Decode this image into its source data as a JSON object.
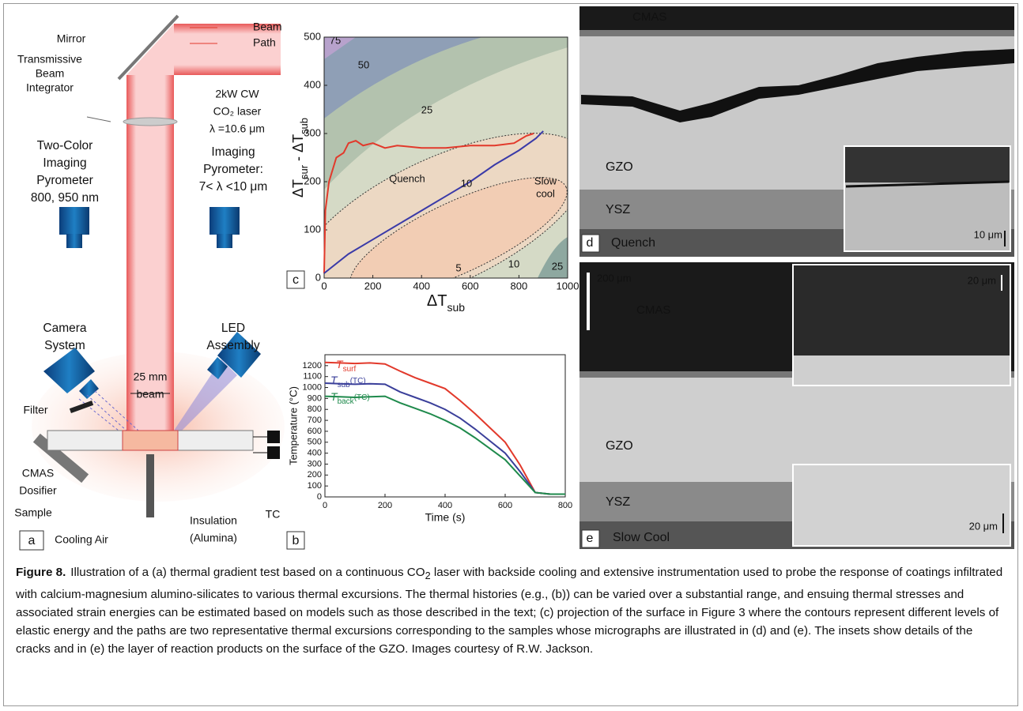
{
  "diagram": {
    "labels": [
      {
        "lines": [
          "Mirror"
        ]
      },
      {
        "lines": [
          "Beam",
          "Path"
        ]
      },
      {
        "lines": [
          "Transmissive",
          "Beam",
          "Integrator"
        ]
      },
      {
        "lines": [
          "2kW CW",
          "CO₂ laser",
          "λ =10.6 μm"
        ]
      },
      {
        "lines": [
          "Two-Color",
          "Imaging",
          "Pyrometer",
          "800, 950 nm"
        ]
      },
      {
        "lines": [
          "Imaging",
          "Pyrometer:",
          "7< λ <10 μm"
        ]
      },
      {
        "lines": [
          "Camera",
          "System"
        ]
      },
      {
        "lines": [
          "LED",
          "Assembly"
        ]
      },
      {
        "lines": [
          "25 mm",
          "beam"
        ]
      },
      {
        "lines": [
          "Filter"
        ]
      },
      {
        "lines": [
          "CMAS",
          "Dosifier"
        ]
      },
      {
        "lines": [
          "Sample"
        ]
      },
      {
        "lines": [
          "Cooling Air"
        ]
      },
      {
        "lines": [
          "Insulation",
          "(Alumina)"
        ]
      },
      {
        "lines": [
          "TC"
        ]
      }
    ],
    "panel_label": "a"
  },
  "chart_data": [
    {
      "type": "line",
      "panel_label": "b",
      "xlabel": "Time (s)",
      "ylabel": "Temperature (°C)",
      "x": [
        0,
        50,
        100,
        150,
        200,
        250,
        300,
        350,
        400,
        450,
        500,
        550,
        600,
        650,
        700,
        750,
        800
      ],
      "xlim": [
        0,
        800
      ],
      "xticks": [
        0,
        200,
        400,
        600,
        800
      ],
      "ylim": [
        0,
        1300
      ],
      "yticks": [
        0,
        100,
        200,
        300,
        400,
        500,
        600,
        700,
        800,
        900,
        1000,
        1100,
        1200
      ],
      "series": [
        {
          "label_main": "T",
          "label_sub": "surf",
          "color": "#e2392b",
          "values": [
            1230,
            1225,
            1220,
            1225,
            1215,
            1150,
            1090,
            1040,
            990,
            880,
            760,
            630,
            500,
            290,
            40,
            25,
            25
          ]
        },
        {
          "label_main": "T",
          "label_sub": "sub",
          "label_note": "(TC)",
          "color": "#3a3f9a",
          "values": [
            1040,
            1035,
            1030,
            1035,
            1030,
            960,
            910,
            860,
            800,
            720,
            620,
            510,
            400,
            230,
            40,
            25,
            25
          ]
        },
        {
          "label_main": "T",
          "label_sub": "back",
          "label_note": "(TC)",
          "color": "#1f8a4c",
          "values": [
            920,
            915,
            910,
            915,
            920,
            860,
            810,
            760,
            700,
            630,
            540,
            440,
            340,
            190,
            40,
            25,
            25
          ]
        }
      ]
    },
    {
      "type": "line",
      "panel_label": "c",
      "xlabel": {
        "main": "ΔT",
        "sub": "sub"
      },
      "ylabel": {
        "main": "ΔT",
        "sub": "sur",
        "mid": " - ΔT",
        "sub2": "sub"
      },
      "xlim": [
        0,
        1000
      ],
      "xticks": [
        0,
        200,
        400,
        600,
        800,
        1000
      ],
      "ylim": [
        0,
        500
      ],
      "yticks": [
        0,
        100,
        200,
        300,
        400,
        500
      ],
      "contour_labels": [
        "75",
        "50",
        "25",
        "10",
        "5",
        "10",
        "25"
      ],
      "series": [
        {
          "label_lines": [
            "Quench"
          ],
          "color": "#e2392b",
          "x": [
            0,
            5,
            20,
            50,
            80,
            100,
            130,
            160,
            200,
            250,
            300,
            400,
            500,
            600,
            700,
            780,
            830,
            860
          ],
          "values": [
            10,
            140,
            200,
            250,
            260,
            280,
            285,
            275,
            280,
            270,
            275,
            270,
            270,
            275,
            275,
            280,
            295,
            300
          ]
        },
        {
          "label_lines": [
            "Slow",
            "cool"
          ],
          "color": "#3a3aa8",
          "x": [
            0,
            100,
            200,
            300,
            400,
            500,
            600,
            700,
            800,
            870,
            900
          ],
          "values": [
            10,
            50,
            80,
            110,
            140,
            170,
            200,
            235,
            265,
            290,
            305
          ]
        }
      ]
    }
  ],
  "micrographs": {
    "d": {
      "labels": [
        "CMAS",
        "GZO",
        "YSZ",
        "Quench"
      ],
      "scale": "10 μm",
      "panel_label": "d"
    },
    "e": {
      "labels": [
        "CMAS",
        "GZO",
        "YSZ",
        "Slow Cool"
      ],
      "scale_main": "200 μm",
      "scale_inset_1": "20 μm",
      "scale_inset_2": "20 μm",
      "panel_label": "e"
    }
  },
  "caption": {
    "label": "Figure 8.",
    "text_1": "Illustration of a (a) thermal gradient test based on a continuous CO",
    "sub": "2",
    "text_2": " laser with backside cooling and extensive instrumentation used to probe the response of coatings infiltrated with calcium-magnesium alumino-silicates to various thermal excursions. The thermal histories (e.g., (b)) can be varied over a substantial range, and ensuing thermal stresses and associated strain energies can be estimated based on models such as those described in the text; (c) projection of the surface in Figure 3 where the contours represent different levels of elastic energy and the paths are two representative thermal excursions corresponding to the samples whose micrographs are illustrated in (d) and (e). The insets show details of the cracks and in (e) the layer of reaction products on the surface of the GZO. Images courtesy of R.W. Jackson."
  }
}
